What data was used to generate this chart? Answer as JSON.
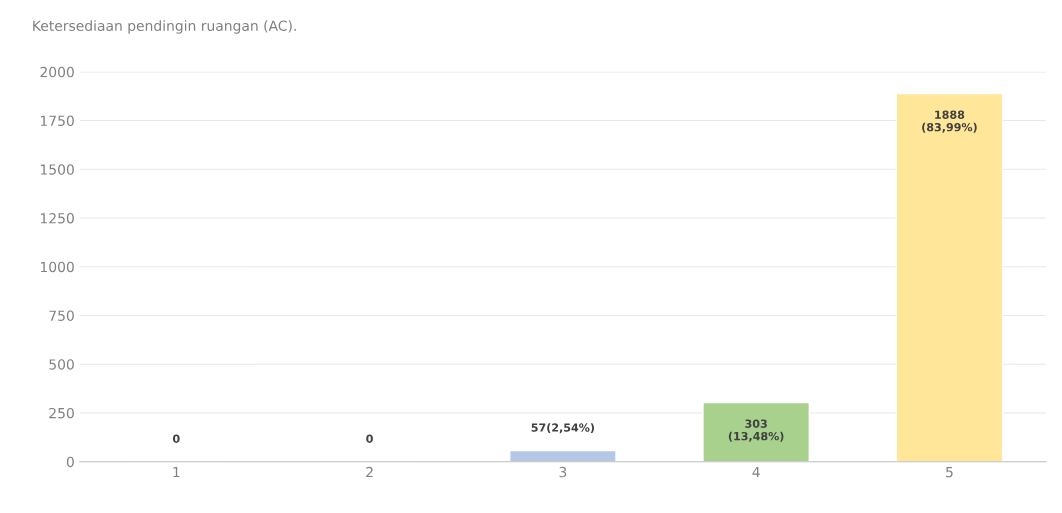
{
  "chart_data": {
    "type": "bar",
    "title": "Ketersediaan pendingin ruangan (AC).",
    "categories": [
      "1",
      "2",
      "3",
      "4",
      "5"
    ],
    "values": [
      0,
      0,
      57,
      303,
      1888
    ],
    "colors": [
      null,
      null,
      "#b4c7e7",
      "#a9d18e",
      "#ffe699"
    ],
    "value_labels": [
      "0",
      "0",
      "57(2,54%)",
      "303\n(13,48%)",
      "1888\n(83,99%)"
    ],
    "ylim": [
      0,
      2000
    ],
    "yticks": [
      0,
      250,
      500,
      750,
      1000,
      1250,
      1500,
      1750,
      2000
    ],
    "grid": "y",
    "legend": false
  }
}
